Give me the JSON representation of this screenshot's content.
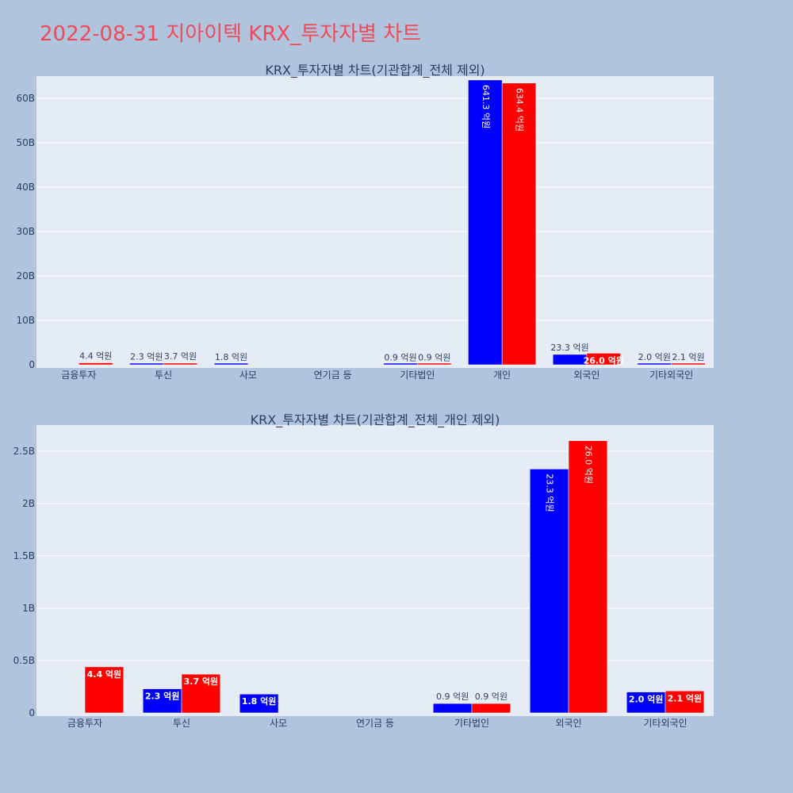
{
  "page_title": "2022-08-31 지아이텍 KRX_투자자별 차트",
  "colors": {
    "buy": "#0000ff",
    "sell": "#ff0000",
    "plot_bg": "#e5ecf6",
    "page_bg": "#b0c4de",
    "title": "#ef4a5a"
  },
  "chart_data": [
    {
      "type": "bar",
      "title": "KRX_투자자별 차트(기관합계_전체 제외)",
      "xlabel": "",
      "ylabel": "",
      "categories": [
        "금융투자",
        "투신",
        "사모",
        "연기금 등",
        "기타법인",
        "개인",
        "외국인",
        "기타외국인"
      ],
      "ylim": [
        0,
        65
      ],
      "y_unit": "B",
      "yticks": [
        0,
        10,
        20,
        30,
        40,
        50,
        60
      ],
      "ytick_labels": [
        "0",
        "10B",
        "20B",
        "30B",
        "40B",
        "50B",
        "60B"
      ],
      "series": [
        {
          "color": "#0000ff",
          "values": [
            0,
            0.23,
            0.18,
            0,
            0.09,
            64.13,
            2.33,
            0.2
          ],
          "labels": [
            "",
            "2.3 억원",
            "1.8 억원",
            "",
            "0.9 억원",
            "641.3 억원",
            "23.3 억원",
            "2.0 억원"
          ]
        },
        {
          "color": "#ff0000",
          "values": [
            0.44,
            0.37,
            0,
            0,
            0.09,
            63.44,
            2.6,
            0.21
          ],
          "labels": [
            "4.4 억원",
            "3.7 억원",
            "",
            "",
            "0.9 억원",
            "634.4 억원",
            "26.0 억원",
            "2.1 억원"
          ]
        }
      ]
    },
    {
      "type": "bar",
      "title": "KRX_투자자별 차트(기관합계_전체_개인 제외)",
      "xlabel": "",
      "ylabel": "",
      "categories": [
        "금융투자",
        "투신",
        "사모",
        "연기금 등",
        "기타법인",
        "외국인",
        "기타외국인"
      ],
      "ylim": [
        0,
        2.75
      ],
      "y_unit": "B",
      "yticks": [
        0,
        0.5,
        1,
        1.5,
        2,
        2.5
      ],
      "ytick_labels": [
        "0",
        "0.5B",
        "1B",
        "1.5B",
        "2B",
        "2.5B"
      ],
      "series": [
        {
          "color": "#0000ff",
          "values": [
            0,
            0.23,
            0.18,
            0,
            0.09,
            2.33,
            0.2
          ],
          "labels": [
            "",
            "2.3 억원",
            "1.8 억원",
            "",
            "0.9 억원",
            "23.3 억원",
            "2.0 억원"
          ]
        },
        {
          "color": "#ff0000",
          "values": [
            0.44,
            0.37,
            0,
            0,
            0.09,
            2.6,
            0.21
          ],
          "labels": [
            "4.4 억원",
            "3.7 억원",
            "",
            "",
            "0.9 억원",
            "26.0 억원",
            "2.1 억원"
          ]
        }
      ]
    }
  ]
}
